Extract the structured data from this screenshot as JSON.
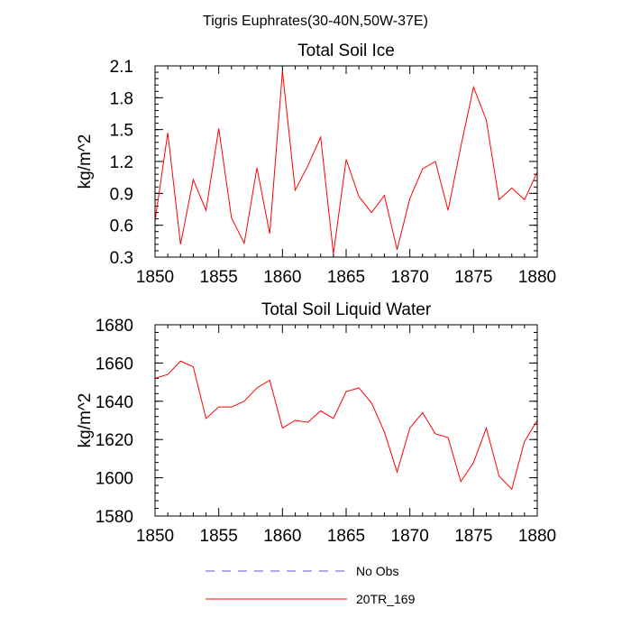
{
  "suptitle": "Tigris Euphrates(30-40N,50W-37E)",
  "chart_data": [
    {
      "type": "line",
      "title": "Total Soil Ice",
      "xlabel": "",
      "ylabel": "kg/m^2",
      "xlim": [
        1850,
        1880
      ],
      "ylim": [
        0.3,
        2.1
      ],
      "xticks": [
        1850,
        1855,
        1860,
        1865,
        1870,
        1875,
        1880
      ],
      "yticks": [
        "0.3",
        "0.6",
        "0.9",
        "1.2",
        "1.5",
        "1.8",
        "2.1"
      ],
      "grid": false,
      "x": [
        1850,
        1851,
        1852,
        1853,
        1854,
        1855,
        1856,
        1857,
        1858,
        1859,
        1860,
        1861,
        1862,
        1863,
        1864,
        1865,
        1866,
        1867,
        1868,
        1869,
        1870,
        1871,
        1872,
        1873,
        1874,
        1875,
        1876,
        1877,
        1878,
        1879,
        1880
      ],
      "series": [
        {
          "name": "20TR_169",
          "color": "#ff0000",
          "values": [
            0.64,
            1.47,
            0.42,
            1.03,
            0.74,
            1.51,
            0.67,
            0.43,
            1.14,
            0.52,
            2.05,
            0.93,
            1.16,
            1.43,
            0.33,
            1.22,
            0.87,
            0.72,
            0.88,
            0.37,
            0.85,
            1.13,
            1.2,
            0.74,
            1.34,
            1.9,
            1.59,
            0.84,
            0.95,
            0.84,
            1.1
          ]
        }
      ]
    },
    {
      "type": "line",
      "title": "Total Soil Liquid Water",
      "xlabel": "",
      "ylabel": "kg/m^2",
      "xlim": [
        1850,
        1880
      ],
      "ylim": [
        1580,
        1680
      ],
      "xticks": [
        1850,
        1855,
        1860,
        1865,
        1870,
        1875,
        1880
      ],
      "yticks": [
        "1580",
        "1600",
        "1620",
        "1640",
        "1660",
        "1680"
      ],
      "grid": false,
      "x": [
        1850,
        1851,
        1852,
        1853,
        1854,
        1855,
        1856,
        1857,
        1858,
        1859,
        1860,
        1861,
        1862,
        1863,
        1864,
        1865,
        1866,
        1867,
        1868,
        1869,
        1870,
        1871,
        1872,
        1873,
        1874,
        1875,
        1876,
        1877,
        1878,
        1879,
        1880
      ],
      "series": [
        {
          "name": "20TR_169",
          "color": "#ff0000",
          "values": [
            1652,
            1654,
            1661,
            1658,
            1631,
            1637,
            1637,
            1640,
            1647,
            1651,
            1626,
            1630,
            1629,
            1635,
            1631,
            1645,
            1647,
            1639,
            1624,
            1603,
            1626,
            1634,
            1623,
            1621,
            1598,
            1608,
            1626,
            1601,
            1594,
            1619,
            1630
          ]
        }
      ]
    }
  ],
  "legend": {
    "placement": "bottom-center",
    "items": [
      {
        "label": "No Obs",
        "color": "#5a5adc",
        "style": "dashed"
      },
      {
        "label": "20TR_169",
        "color": "#ff0000",
        "style": "solid"
      }
    ]
  }
}
